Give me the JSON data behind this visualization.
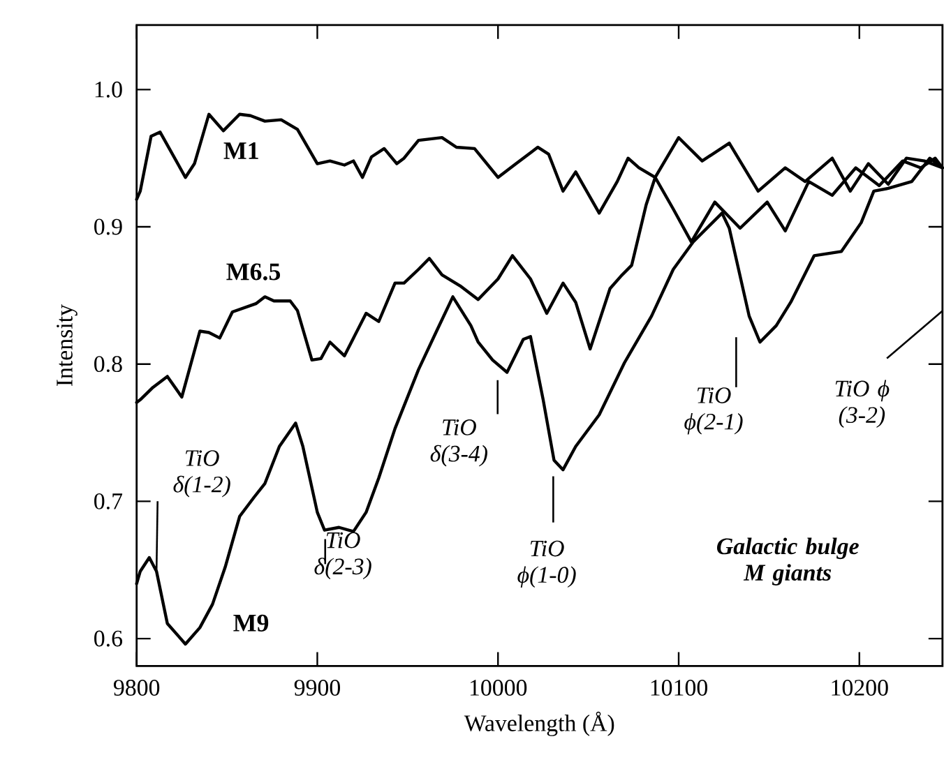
{
  "chart_data": {
    "type": "line",
    "xlabel": "Wavelength (Å)",
    "ylabel": "Intensity",
    "xlim": [
      9800,
      10246
    ],
    "ylim": [
      0.58,
      1.047
    ],
    "xticks": [
      9800,
      9900,
      10000,
      10100,
      10200
    ],
    "yticks": [
      {
        "value": 0.6,
        "label": "0.6"
      },
      {
        "value": 0.7,
        "label": "0.7"
      },
      {
        "value": 0.8,
        "label": "0.8"
      },
      {
        "value": 0.9,
        "label": "0.9"
      },
      {
        "value": 1.0,
        "label": "1.0"
      }
    ],
    "series": [
      {
        "name": "M1",
        "color": "#000000",
        "x": [
          9800,
          9802,
          9808,
          9813,
          9827,
          9832,
          9840,
          9848,
          9857,
          9863,
          9871,
          9880,
          9889,
          9900,
          9907,
          9915,
          9920,
          9925,
          9930,
          9937,
          9944,
          9948,
          9956,
          9969,
          9977,
          9987,
          10000,
          10010,
          10022,
          10028,
          10036,
          10043,
          10056,
          10066,
          10072,
          10078,
          10087,
          10097,
          10107,
          10120,
          10134,
          10149,
          10159,
          10172,
          10185,
          10198,
          10211,
          10224,
          10234,
          10242,
          10246
        ],
        "values": [
          0.92,
          0.926,
          0.966,
          0.969,
          0.936,
          0.946,
          0.982,
          0.97,
          0.982,
          0.981,
          0.977,
          0.978,
          0.971,
          0.946,
          0.948,
          0.945,
          0.948,
          0.936,
          0.951,
          0.957,
          0.946,
          0.95,
          0.963,
          0.965,
          0.958,
          0.957,
          0.936,
          0.946,
          0.958,
          0.953,
          0.926,
          0.94,
          0.91,
          0.933,
          0.95,
          0.943,
          0.936,
          0.913,
          0.889,
          0.918,
          0.899,
          0.918,
          0.897,
          0.933,
          0.923,
          0.943,
          0.93,
          0.948,
          0.943,
          0.95,
          0.943
        ]
      },
      {
        "name": "M6.5",
        "color": "#000000",
        "x": [
          9800,
          9802,
          9809,
          9817,
          9825,
          9835,
          9840,
          9846,
          9853,
          9866,
          9871,
          9876,
          9885,
          9889,
          9897,
          9902,
          9907,
          9915,
          9927,
          9934,
          9943,
          9948,
          9956,
          9962,
          9969,
          9979,
          9989,
          10000,
          10008,
          10018,
          10027,
          10036,
          10043,
          10051,
          10062,
          10068,
          10074,
          10082,
          10087,
          10100,
          10113,
          10128,
          10144,
          10159,
          10170,
          10185,
          10195,
          10205,
          10216,
          10226,
          10236,
          10246
        ],
        "values": [
          0.772,
          0.774,
          0.783,
          0.791,
          0.776,
          0.824,
          0.823,
          0.819,
          0.838,
          0.844,
          0.849,
          0.846,
          0.846,
          0.839,
          0.803,
          0.804,
          0.816,
          0.806,
          0.837,
          0.831,
          0.859,
          0.859,
          0.869,
          0.877,
          0.865,
          0.857,
          0.847,
          0.862,
          0.879,
          0.862,
          0.837,
          0.859,
          0.845,
          0.811,
          0.855,
          0.864,
          0.872,
          0.916,
          0.936,
          0.965,
          0.948,
          0.961,
          0.926,
          0.943,
          0.933,
          0.95,
          0.926,
          0.946,
          0.931,
          0.95,
          0.948,
          0.943
        ]
      },
      {
        "name": "M9",
        "color": "#000000",
        "x": [
          9800,
          9802,
          9807,
          9811,
          9817,
          9827,
          9835,
          9842,
          9849,
          9857,
          9865,
          9871,
          9879,
          9888,
          9892,
          9900,
          9904,
          9912,
          9920,
          9927,
          9934,
          9943,
          9956,
          9966,
          9975,
          9985,
          9989,
          9997,
          10005,
          10014,
          10018,
          10025,
          10031,
          10036,
          10043,
          10056,
          10070,
          10085,
          10097,
          10108,
          10124,
          10128,
          10139,
          10145,
          10154,
          10162,
          10175,
          10190,
          10201,
          10208,
          10216,
          10229,
          10239,
          10246
        ],
        "values": [
          0.64,
          0.649,
          0.659,
          0.649,
          0.611,
          0.596,
          0.608,
          0.625,
          0.652,
          0.689,
          0.703,
          0.713,
          0.74,
          0.757,
          0.74,
          0.692,
          0.679,
          0.681,
          0.678,
          0.692,
          0.717,
          0.753,
          0.796,
          0.824,
          0.849,
          0.828,
          0.816,
          0.803,
          0.794,
          0.818,
          0.82,
          0.774,
          0.73,
          0.723,
          0.74,
          0.763,
          0.801,
          0.835,
          0.869,
          0.889,
          0.91,
          0.899,
          0.835,
          0.816,
          0.828,
          0.845,
          0.879,
          0.882,
          0.903,
          0.926,
          0.928,
          0.933,
          0.95,
          0.943
        ]
      }
    ],
    "annotations": [
      {
        "text": "TiO δ(1-2)",
        "x": 9811,
        "y": 0.649
      },
      "TiO δ(2-3)",
      "TiO δ(3-4)",
      "TiO ϕ(1-0)",
      "TiO ϕ(2-1)",
      "TiO ϕ (3-2)",
      "Galactic bulge M giants"
    ]
  }
}
